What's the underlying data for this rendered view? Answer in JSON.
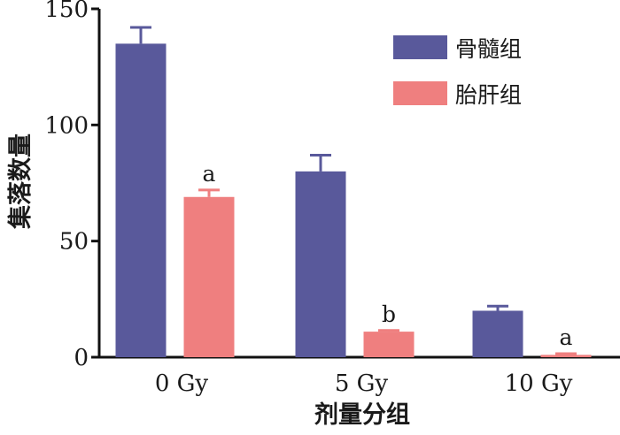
{
  "chart_data": {
    "type": "bar",
    "xlabel": "剂量分组",
    "ylabel": "集落数量",
    "ylim": [
      0,
      150
    ],
    "yticks": [
      "0",
      "50",
      "100",
      "150"
    ],
    "categories": [
      "0 Gy",
      "5 Gy",
      "10 Gy"
    ],
    "series": [
      {
        "name": "骨髓组",
        "color": "#59599b",
        "values": [
          135,
          80,
          20
        ],
        "errors": [
          7,
          7,
          2
        ],
        "annotations": [
          "",
          "",
          ""
        ]
      },
      {
        "name": "胎肝组",
        "color": "#ef7f7f",
        "values": [
          69,
          11,
          1
        ],
        "errors": [
          3,
          0.5,
          0.5
        ],
        "annotations": [
          "a",
          "b",
          "a"
        ]
      }
    ],
    "legend_position": "top-right",
    "grid": false
  }
}
